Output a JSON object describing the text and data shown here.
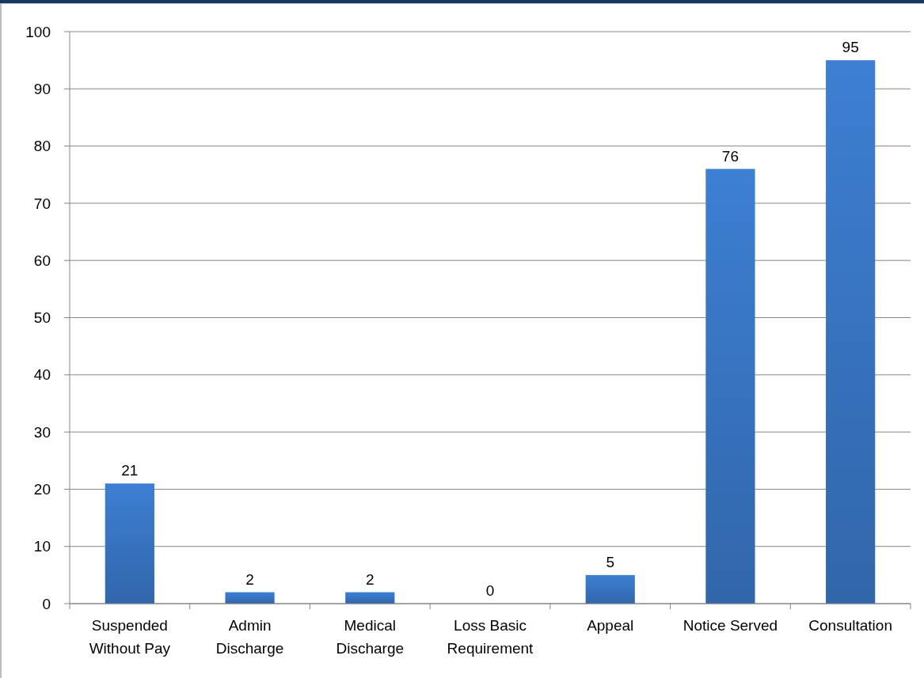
{
  "chart_data": {
    "type": "bar",
    "categories": [
      "Suspended Without Pay",
      "Admin Discharge",
      "Medical Discharge",
      "Loss Basic Requirement",
      "Appeal",
      "Notice Served",
      "Consultation"
    ],
    "values": [
      21,
      2,
      2,
      0,
      5,
      76,
      95
    ],
    "color": "#3a78c8",
    "ylim": [
      0,
      100
    ],
    "yticks": [
      0,
      10,
      20,
      30,
      40,
      50,
      60,
      70,
      80,
      90,
      100
    ],
    "grid": "y",
    "data_labels": true
  }
}
